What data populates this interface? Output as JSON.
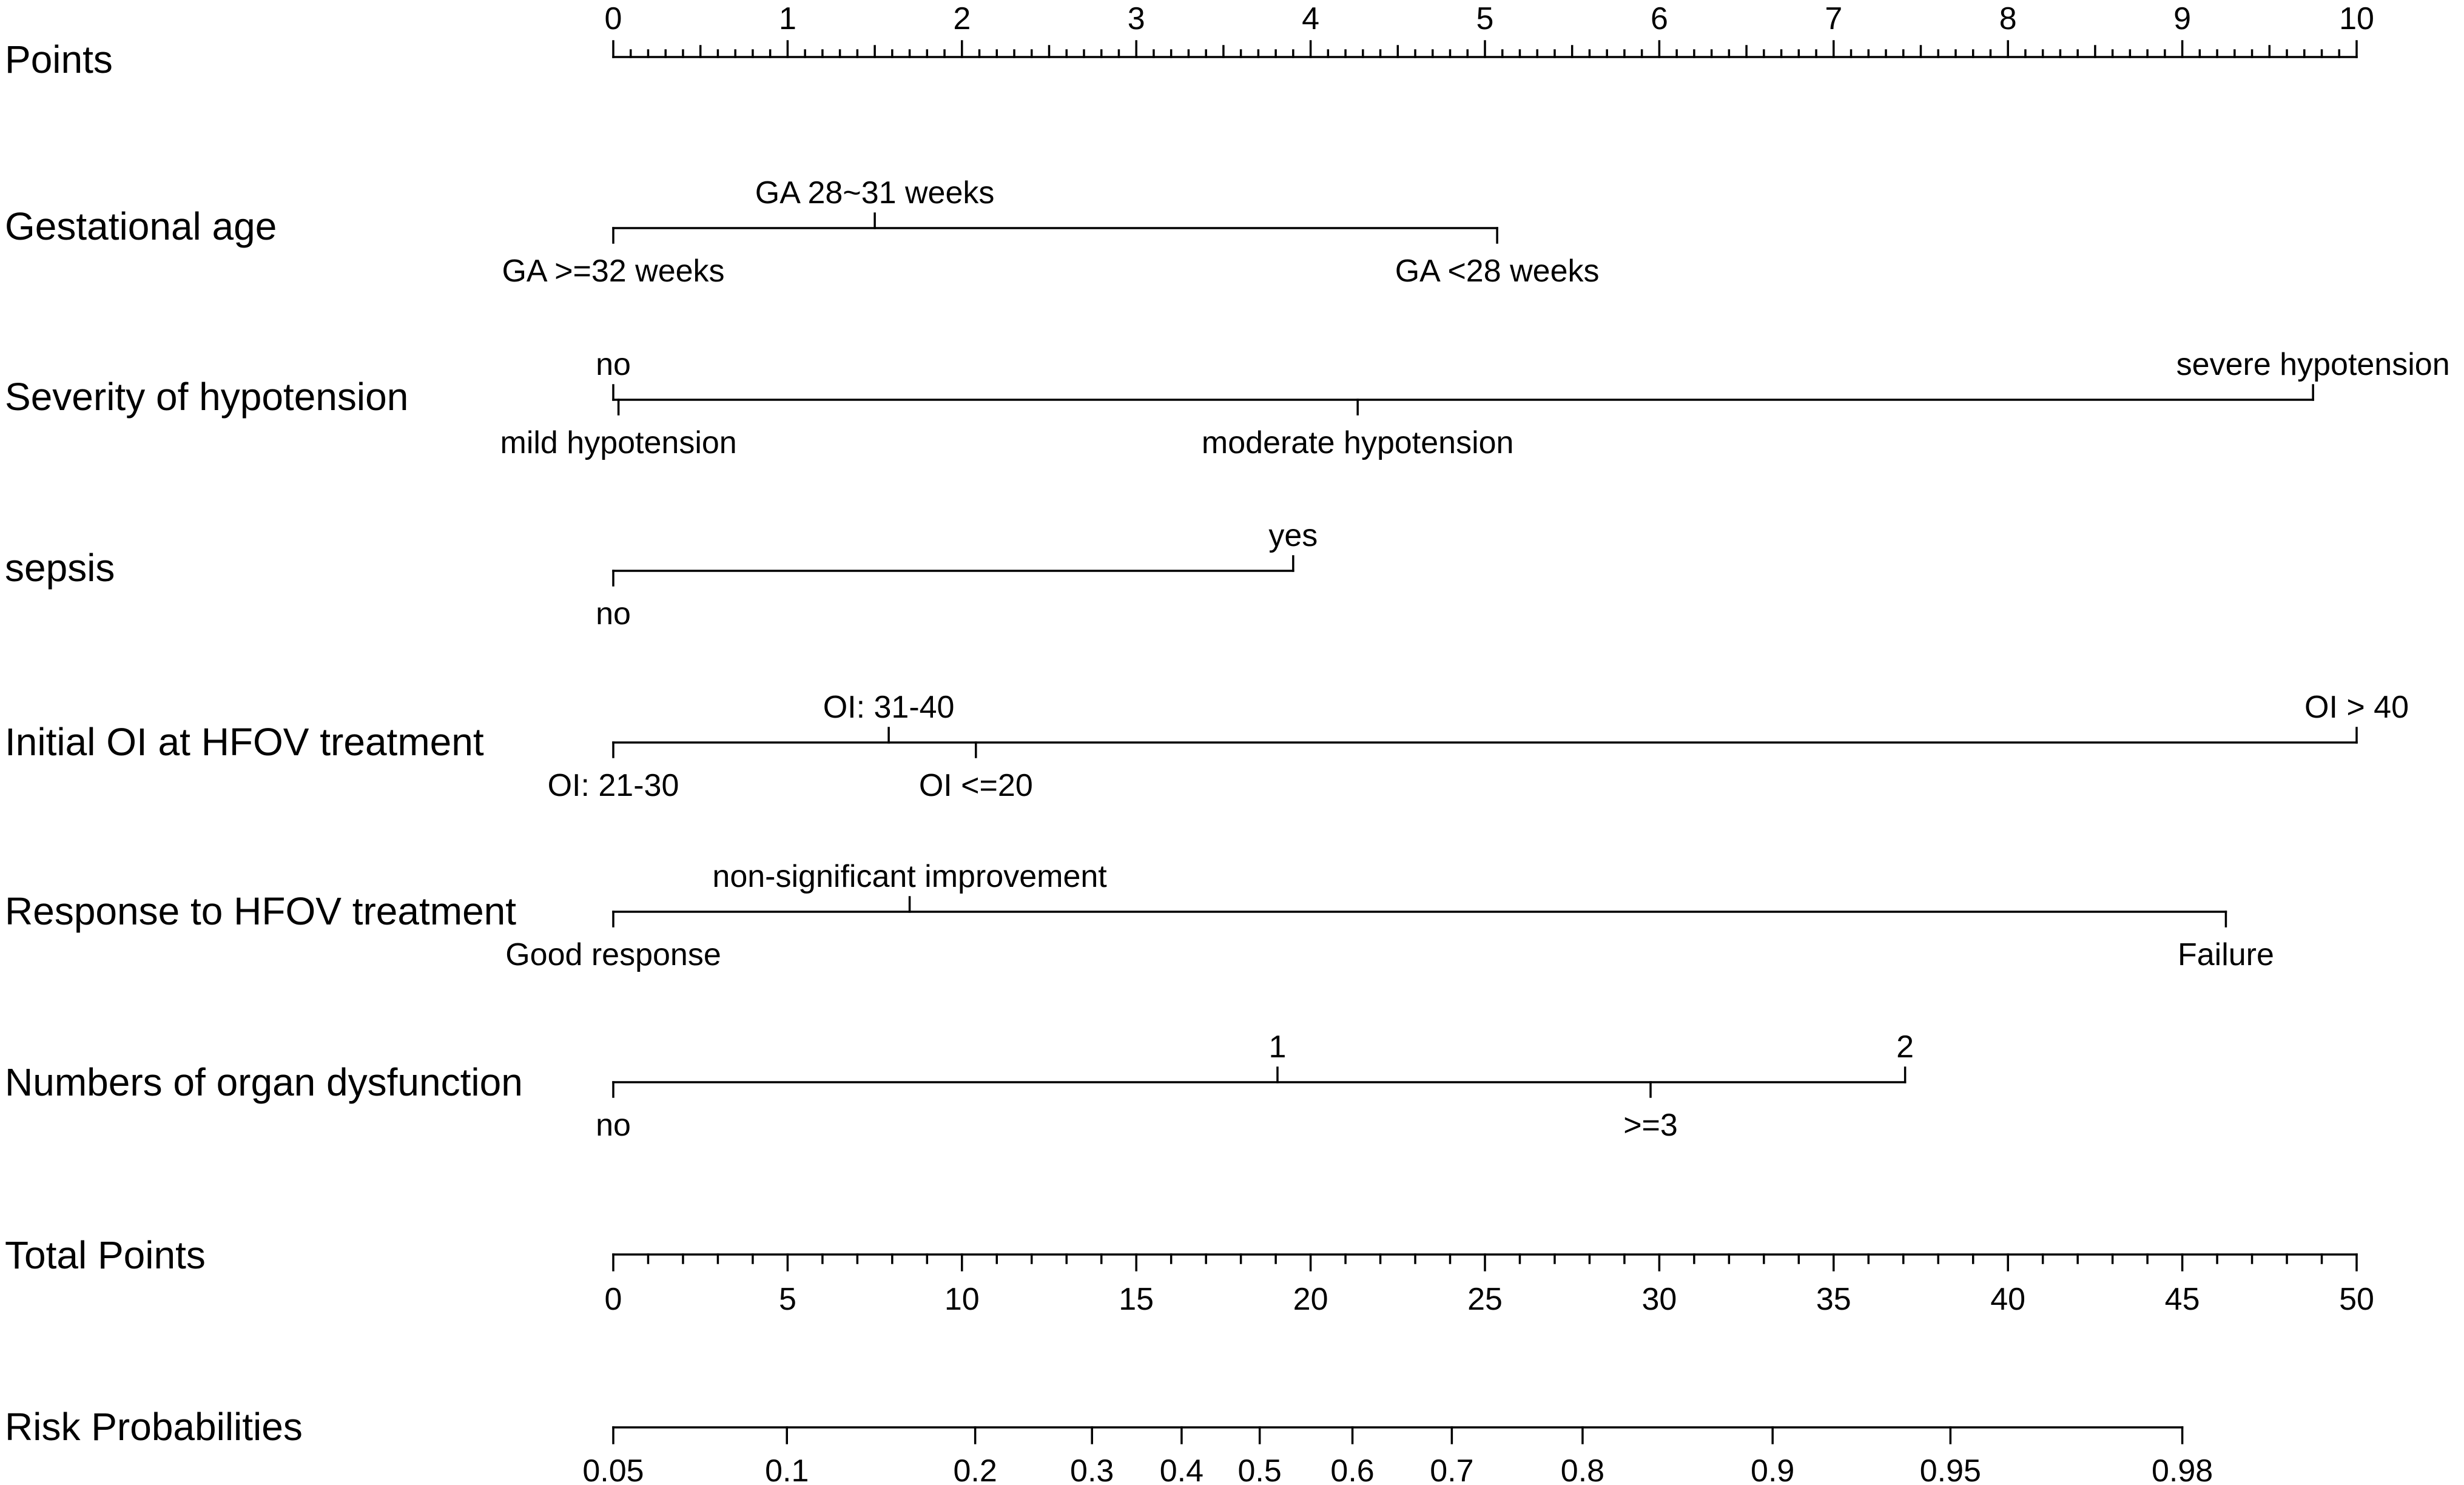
{
  "chart_data": {
    "type": "nomogram",
    "points_axis": {
      "label": "Points",
      "range": [
        0,
        10
      ],
      "tick_labels": [
        "0",
        "1",
        "2",
        "3",
        "4",
        "5",
        "6",
        "7",
        "8",
        "9",
        "10"
      ]
    },
    "predictors": [
      {
        "label": "Gestational age",
        "levels": [
          {
            "text": "GA >=32 weeks",
            "points": 0,
            "side": "below"
          },
          {
            "text": "GA 28~31 weeks",
            "points": 1.5,
            "side": "above"
          },
          {
            "text": "GA <28 weeks",
            "points": 5.07,
            "side": "below"
          }
        ]
      },
      {
        "label": "Severity of hypotension",
        "levels": [
          {
            "text": "no",
            "points": 0,
            "side": "above"
          },
          {
            "text": "mild hypotension",
            "points": 0.03,
            "side": "below"
          },
          {
            "text": "moderate hypotension",
            "points": 4.27,
            "side": "below"
          },
          {
            "text": "severe hypotension",
            "points": 9.75,
            "side": "above"
          }
        ]
      },
      {
        "label": "sepsis",
        "levels": [
          {
            "text": "no",
            "points": 0,
            "side": "below"
          },
          {
            "text": "yes",
            "points": 3.9,
            "side": "above"
          }
        ]
      },
      {
        "label": "Initial OI at HFOV treatment",
        "levels": [
          {
            "text": "OI: 21-30",
            "points": 0,
            "side": "below"
          },
          {
            "text": "OI: 31-40",
            "points": 1.58,
            "side": "above"
          },
          {
            "text": "OI <=20",
            "points": 2.08,
            "side": "below"
          },
          {
            "text": "OI > 40",
            "points": 10,
            "side": "above"
          }
        ]
      },
      {
        "label": "Response to HFOV treatment",
        "levels": [
          {
            "text": "Good response",
            "points": 0,
            "side": "below"
          },
          {
            "text": "non-significant improvement",
            "points": 1.7,
            "side": "above"
          },
          {
            "text": "Failure",
            "points": 9.25,
            "side": "below"
          }
        ]
      },
      {
        "label": "Numbers of organ dysfunction",
        "levels": [
          {
            "text": "no",
            "points": 0,
            "side": "below"
          },
          {
            "text": "1",
            "points": 3.81,
            "side": "above"
          },
          {
            "text": ">=3",
            "points": 5.95,
            "side": "below"
          },
          {
            "text": "2",
            "points": 7.41,
            "side": "above"
          }
        ]
      }
    ],
    "total_points_axis": {
      "label": "Total Points",
      "range": [
        0,
        50
      ],
      "tick_labels": [
        "0",
        "5",
        "10",
        "15",
        "20",
        "25",
        "30",
        "35",
        "40",
        "45",
        "50"
      ]
    },
    "risk_axis": {
      "label": "Risk Probabilities",
      "ticks": [
        {
          "label": "0.05",
          "total_points": 0
        },
        {
          "label": "0.1",
          "total_points": 4.98
        },
        {
          "label": "0.2",
          "total_points": 10.38
        },
        {
          "label": "0.3",
          "total_points": 13.73
        },
        {
          "label": "0.4",
          "total_points": 16.3
        },
        {
          "label": "0.5",
          "total_points": 18.54
        },
        {
          "label": "0.6",
          "total_points": 21.2
        },
        {
          "label": "0.7",
          "total_points": 24.05
        },
        {
          "label": "0.8",
          "total_points": 27.8
        },
        {
          "label": "0.9",
          "total_points": 33.25
        },
        {
          "label": "0.95",
          "total_points": 38.35
        },
        {
          "label": "0.98",
          "total_points": 45
        }
      ]
    }
  }
}
